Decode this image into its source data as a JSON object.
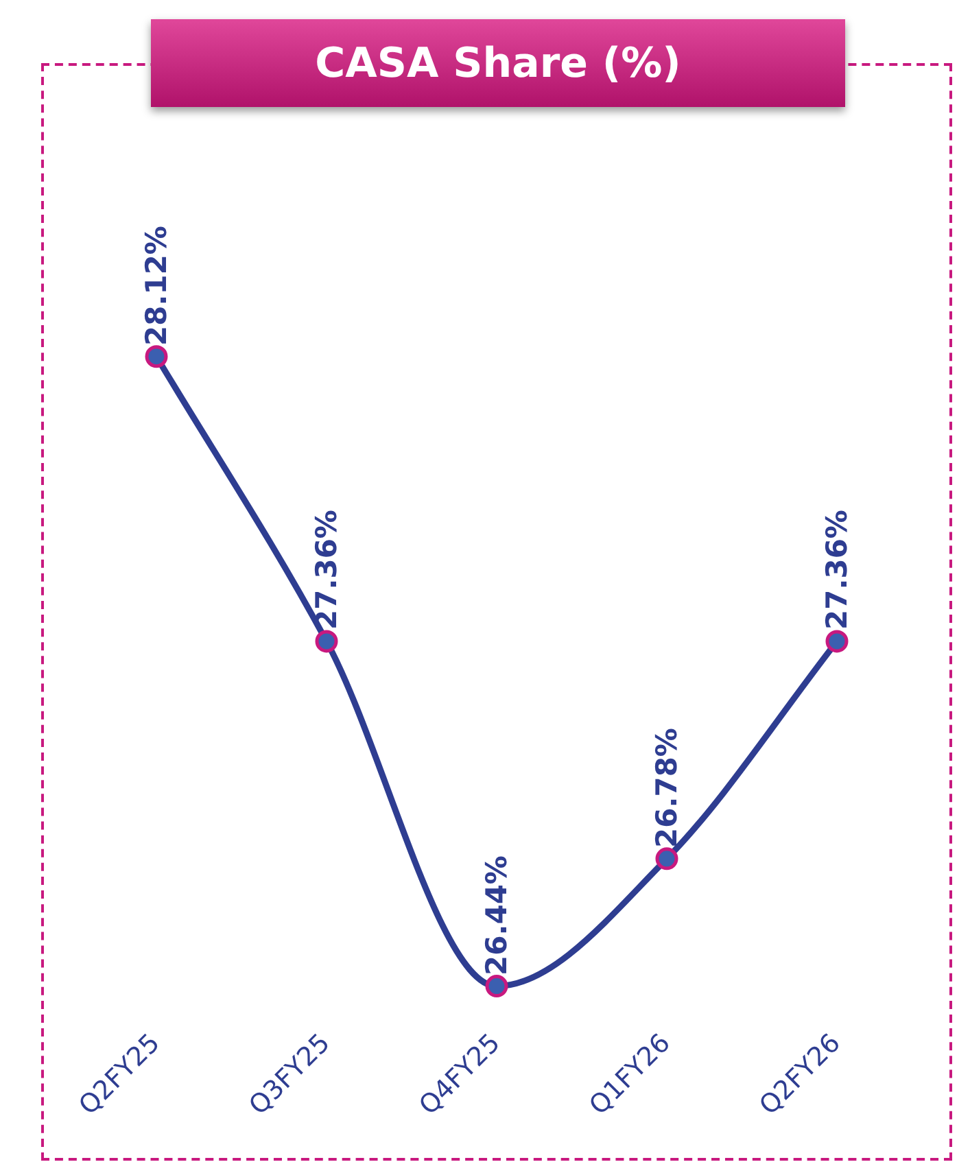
{
  "chart_data": {
    "type": "line",
    "title": "CASA Share (%)",
    "categories": [
      "Q2FY25",
      "Q3FY25",
      "Q4FY25",
      "Q1FY26",
      "Q2FY26"
    ],
    "series": [
      {
        "color": "#2e3d91",
        "values": [
          28.12,
          27.36,
          26.44,
          26.78,
          27.36
        ],
        "value_labels": [
          "28.12%",
          "27.36%",
          "26.44%",
          "26.78%",
          "27.36%"
        ]
      }
    ],
    "marker": "circle",
    "line_style": "solid",
    "grid": false,
    "legend": false
  }
}
